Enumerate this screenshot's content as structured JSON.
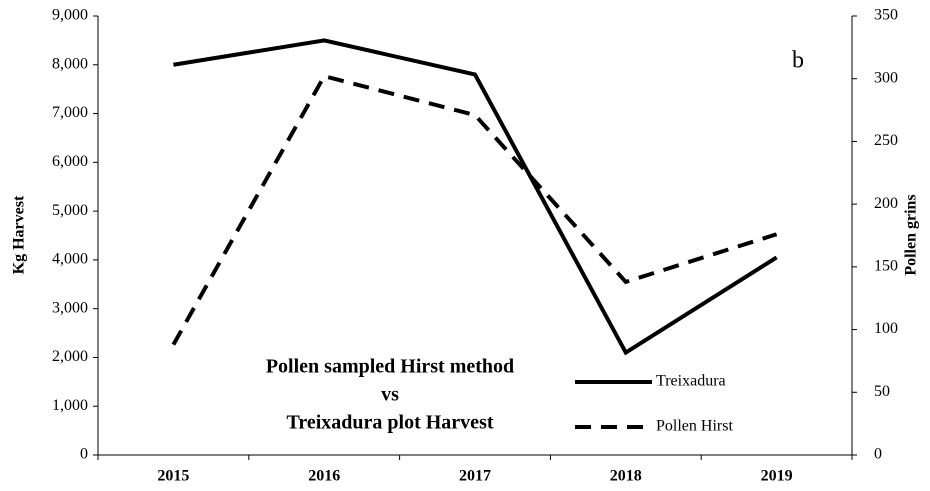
{
  "chart_data": {
    "type": "line",
    "title": [
      "Pollen sampled Hirst method",
      "vs",
      "Treixadura plot Harvest"
    ],
    "annotation": "b",
    "y_label": "Kg Harvest",
    "y2_label": "Pollen grins",
    "categories": [
      "2015",
      "2016",
      "2017",
      "2018",
      "2019"
    ],
    "series": [
      {
        "name": "Treixadura",
        "color": "#000000",
        "dash": "solid",
        "values": [
          8000,
          8500,
          7800,
          2100,
          4050
        ]
      },
      {
        "name": "Pollen Hirst",
        "color": "#000000",
        "dash": "dashed",
        "axis": "y2",
        "values": [
          88,
          302,
          271,
          138,
          176
        ]
      }
    ],
    "ylim": [
      0,
      9000
    ],
    "yticks": [
      0,
      {
        "value": 1000,
        "label": "1,000"
      },
      {
        "value": 2000,
        "label": "2,000"
      },
      {
        "value": 3000,
        "label": "3,000"
      },
      {
        "value": 4000,
        "label": "4,000"
      },
      {
        "value": 5000,
        "label": "5,000"
      },
      {
        "value": 6000,
        "label": "6,000"
      },
      {
        "value": 7000,
        "label": "7,000"
      },
      {
        "value": 8000,
        "label": "8,000"
      },
      {
        "value": 9000,
        "label": "9,000"
      }
    ],
    "y2lim": [
      0,
      350
    ],
    "y2ticks": [
      0,
      50,
      100,
      150,
      200,
      250,
      300,
      350
    ],
    "grid": false
  }
}
